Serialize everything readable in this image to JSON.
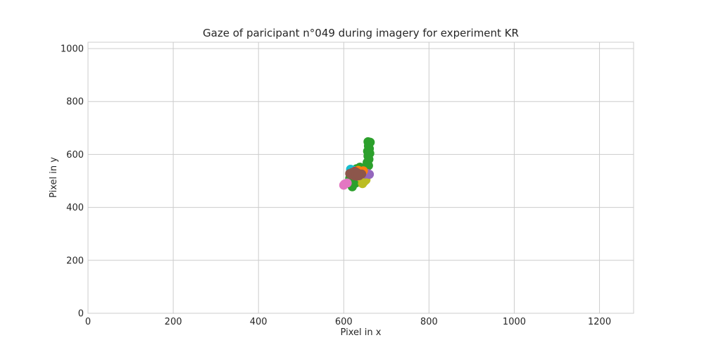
{
  "chart_data": {
    "type": "scatter",
    "title": "Gaze of paricipant n°049 during imagery for experiment KR",
    "xlabel": "Pixel in x",
    "ylabel": "Pixel in y",
    "xlim": [
      0,
      1280
    ],
    "ylim": [
      0,
      1024
    ],
    "xticks": [
      "0",
      "200",
      "400",
      "600",
      "800",
      "1000",
      "1200"
    ],
    "yticks": [
      "0",
      "200",
      "400",
      "600",
      "800",
      "1000"
    ],
    "grid": true,
    "legend": "none",
    "series": [
      {
        "color": "#2ca02c",
        "points": [
          [
            657,
            648
          ],
          [
            662,
            646
          ],
          [
            658,
            632
          ],
          [
            660,
            622
          ],
          [
            656,
            612
          ],
          [
            661,
            604
          ],
          [
            657,
            594
          ],
          [
            659,
            582
          ],
          [
            655,
            570
          ],
          [
            658,
            558
          ],
          [
            652,
            552
          ],
          [
            646,
            548
          ],
          [
            638,
            552
          ],
          [
            630,
            546
          ],
          [
            624,
            536
          ],
          [
            618,
            522
          ],
          [
            614,
            510
          ],
          [
            616,
            496
          ],
          [
            618,
            484
          ],
          [
            620,
            478
          ],
          [
            628,
            492
          ],
          [
            636,
            506
          ],
          [
            644,
            520
          ],
          [
            650,
            532
          ]
        ]
      },
      {
        "color": "#17becf",
        "points": [
          [
            616,
            544
          ],
          [
            622,
            540
          ],
          [
            619,
            534
          ]
        ]
      },
      {
        "color": "#bcbd22",
        "points": [
          [
            644,
            490
          ],
          [
            648,
            498
          ],
          [
            652,
            504
          ],
          [
            640,
            512
          ],
          [
            645,
            530
          ],
          [
            636,
            536
          ]
        ]
      },
      {
        "color": "#9467bd",
        "points": [
          [
            656,
            528
          ],
          [
            650,
            526
          ],
          [
            660,
            525
          ]
        ]
      },
      {
        "color": "#ff7f0e",
        "points": [
          [
            640,
            532
          ],
          [
            646,
            538
          ],
          [
            634,
            540
          ]
        ]
      },
      {
        "color": "#d62728",
        "points": [
          [
            626,
            536
          ],
          [
            632,
            530
          ],
          [
            636,
            526
          ]
        ]
      },
      {
        "color": "#7f7f7f",
        "points": [
          [
            632,
            528
          ],
          [
            628,
            522
          ]
        ]
      },
      {
        "color": "#e377c2",
        "points": [
          [
            602,
            488
          ],
          [
            608,
            492
          ],
          [
            600,
            484
          ]
        ]
      },
      {
        "color": "#8c564b",
        "points": [
          [
            614,
            528
          ],
          [
            620,
            532
          ],
          [
            626,
            526
          ],
          [
            632,
            530
          ],
          [
            638,
            524
          ],
          [
            624,
            520
          ],
          [
            618,
            524
          ],
          [
            630,
            518
          ],
          [
            636,
            520
          ],
          [
            642,
            526
          ],
          [
            620,
            528
          ],
          [
            628,
            534
          ],
          [
            634,
            524
          ]
        ]
      }
    ]
  }
}
